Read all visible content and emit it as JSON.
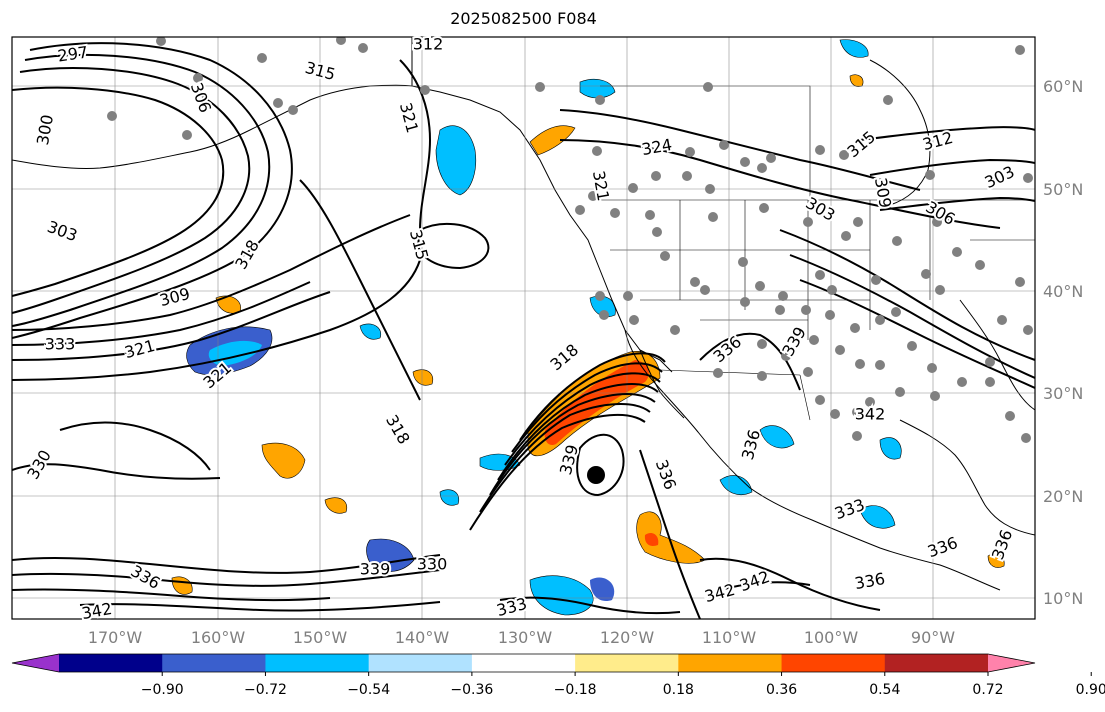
{
  "title": "2025082500 F084",
  "map": {
    "lon_labels": [
      "170°W",
      "160°W",
      "150°W",
      "140°W",
      "130°W",
      "120°W",
      "110°W",
      "100°W",
      "90°W"
    ],
    "lat_labels": [
      "60°N",
      "50°N",
      "40°N",
      "30°N",
      "20°N",
      "10°N"
    ],
    "contour_labels": [
      "297",
      "300",
      "306",
      "315",
      "312",
      "321",
      "303",
      "309",
      "333",
      "321",
      "315",
      "324",
      "321",
      "303",
      "312",
      "315",
      "309",
      "306",
      "303",
      "318",
      "318",
      "318",
      "321",
      "336",
      "339",
      "339",
      "342",
      "336",
      "330",
      "336",
      "342",
      "333",
      "339",
      "330",
      "342",
      "342",
      "336",
      "336",
      "333",
      "336",
      "336"
    ],
    "colorbar": {
      "colors": [
        "#9932CC",
        "#00008B",
        "#3A5FCD",
        "#00BFFF",
        "#B0E2FF",
        "#FFFFFF",
        "#FFEC8B",
        "#FFA500",
        "#FF4500",
        "#B22222",
        "#FF82AB"
      ],
      "tick_labels": [
        "−0.90",
        "−0.72",
        "−0.54",
        "−0.36",
        "−0.18",
        "0.18",
        "0.36",
        "0.54",
        "0.72",
        "0.90"
      ]
    }
  }
}
